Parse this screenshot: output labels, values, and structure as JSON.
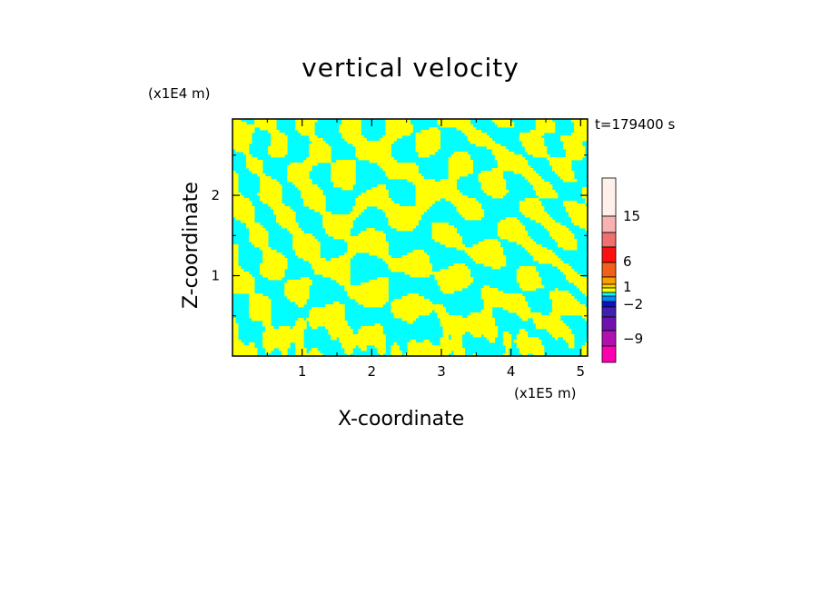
{
  "chart_data": {
    "type": "heatmap",
    "title": "vertical velocity",
    "xlabel": "X-coordinate",
    "ylabel": "Z-coordinate",
    "x_unit": "(x1E5 m)",
    "y_unit": "(x1E4 m)",
    "time_label": "t=179400 s",
    "xlim": [
      0,
      5.1
    ],
    "ylim": [
      0,
      2.95
    ],
    "x_ticks": [
      1,
      2,
      3,
      4,
      5
    ],
    "y_ticks": [
      1,
      2
    ],
    "x_tick_labels": [
      "1",
      "2",
      "3",
      "4",
      "5"
    ],
    "y_tick_labels": [
      "1",
      "2"
    ],
    "field_colors": {
      "positive": "#ffff00",
      "negative": "#00ffff"
    },
    "colorbar": {
      "labels": [
        {
          "value": 15,
          "text": "15"
        },
        {
          "value": 6,
          "text": "6"
        },
        {
          "value": 1,
          "text": "1"
        },
        {
          "value": -2,
          "text": "−2"
        },
        {
          "value": -9,
          "text": "−9"
        }
      ],
      "segments_top_to_bottom": [
        {
          "color": "#fff0ea",
          "value": 21
        },
        {
          "color": "#f8b2b2",
          "value": 15
        },
        {
          "color": "#f07070",
          "value": 12
        },
        {
          "color": "#ff1010",
          "value": 9
        },
        {
          "color": "#f06018",
          "value": 6
        },
        {
          "color": "#f8a000",
          "value": 3
        },
        {
          "color": "#ffd000",
          "value": 2
        },
        {
          "color": "#ffff00",
          "value": 1
        },
        {
          "color": "#00ffff",
          "value": 0
        },
        {
          "color": "#0088ff",
          "value": -1
        },
        {
          "color": "#1010c0",
          "value": -2
        },
        {
          "color": "#4020b0",
          "value": -3
        },
        {
          "color": "#7010b0",
          "value": -6
        },
        {
          "color": "#b010b0",
          "value": -9
        },
        {
          "color": "#ff00b0",
          "value": -12
        }
      ]
    }
  }
}
